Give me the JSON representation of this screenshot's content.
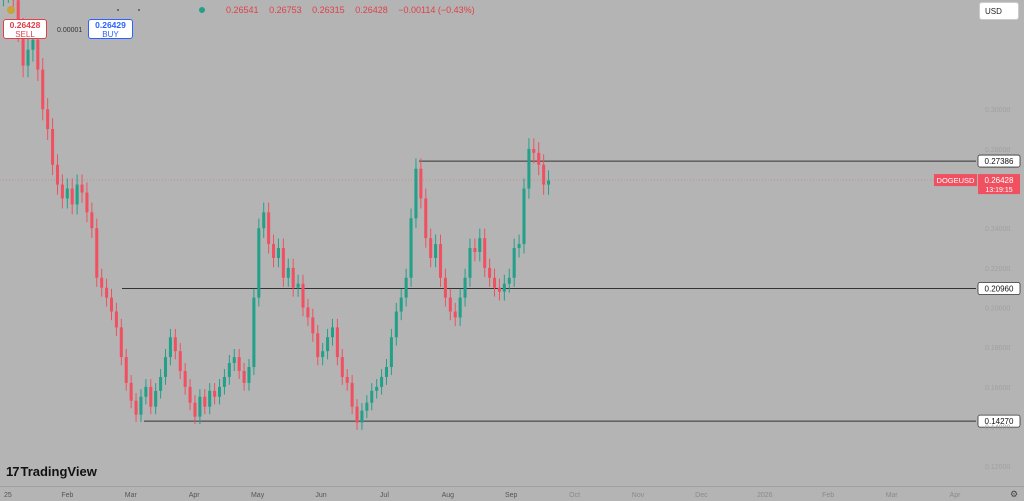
{
  "header": {
    "ohlc": [
      "0.26541",
      "0.26753",
      "0.26315",
      "0.26428",
      "−0.00114 (−0.43%)"
    ],
    "sell": {
      "price": "0.26428",
      "label": "SELL"
    },
    "buy": {
      "price": "0.26429",
      "label": "BUY"
    },
    "spread": "0.00001",
    "currency": "USD"
  },
  "brand": "TradingView",
  "colors": {
    "up": "#22a08a",
    "down": "#f05060",
    "background": "#b4b4b4",
    "level": "#333333"
  },
  "icons": {
    "settings": "gear-icon",
    "logo": "tradingview-logo-icon"
  },
  "chart_data": {
    "type": "candlestick",
    "symbol": "DOGEUSD",
    "last_price": "0.26428",
    "countdown": "13:19:15",
    "ylim": [
      0.11,
      0.345
    ],
    "y_ticks": [
      0.12,
      0.14,
      0.16,
      0.18,
      0.2,
      0.22,
      0.24,
      0.26,
      0.28,
      0.3
    ],
    "x_ticks": [
      "25",
      "Feb",
      "Mar",
      "Apr",
      "May",
      "Jun",
      "Jul",
      "Aug",
      "Sep",
      "Oct",
      "Nov",
      "Dec",
      "2026",
      "Feb",
      "Mar",
      "Apr"
    ],
    "levels": [
      {
        "value": 0.27386,
        "label": "0.27386"
      },
      {
        "value": 0.2096,
        "label": "0.20960"
      },
      {
        "value": 0.1427,
        "label": "0.14270"
      }
    ],
    "closes": [
      0.36,
      0.372,
      0.355,
      0.34,
      0.322,
      0.33,
      0.335,
      0.32,
      0.3,
      0.29,
      0.272,
      0.262,
      0.255,
      0.26,
      0.252,
      0.262,
      0.258,
      0.248,
      0.24,
      0.215,
      0.21,
      0.205,
      0.198,
      0.19,
      0.175,
      0.162,
      0.153,
      0.146,
      0.155,
      0.16,
      0.15,
      0.158,
      0.165,
      0.175,
      0.185,
      0.178,
      0.168,
      0.16,
      0.152,
      0.145,
      0.155,
      0.15,
      0.158,
      0.155,
      0.16,
      0.165,
      0.172,
      0.175,
      0.168,
      0.162,
      0.17,
      0.205,
      0.24,
      0.248,
      0.232,
      0.225,
      0.23,
      0.215,
      0.22,
      0.21,
      0.212,
      0.2,
      0.195,
      0.187,
      0.175,
      0.178,
      0.185,
      0.19,
      0.175,
      0.165,
      0.162,
      0.15,
      0.142,
      0.148,
      0.152,
      0.158,
      0.16,
      0.165,
      0.17,
      0.185,
      0.198,
      0.205,
      0.215,
      0.245,
      0.27,
      0.255,
      0.235,
      0.225,
      0.232,
      0.215,
      0.205,
      0.198,
      0.195,
      0.205,
      0.215,
      0.23,
      0.228,
      0.235,
      0.22,
      0.215,
      0.21,
      0.208,
      0.212,
      0.215,
      0.23,
      0.232,
      0.26,
      0.28,
      0.278,
      0.272,
      0.262,
      0.264
    ]
  }
}
